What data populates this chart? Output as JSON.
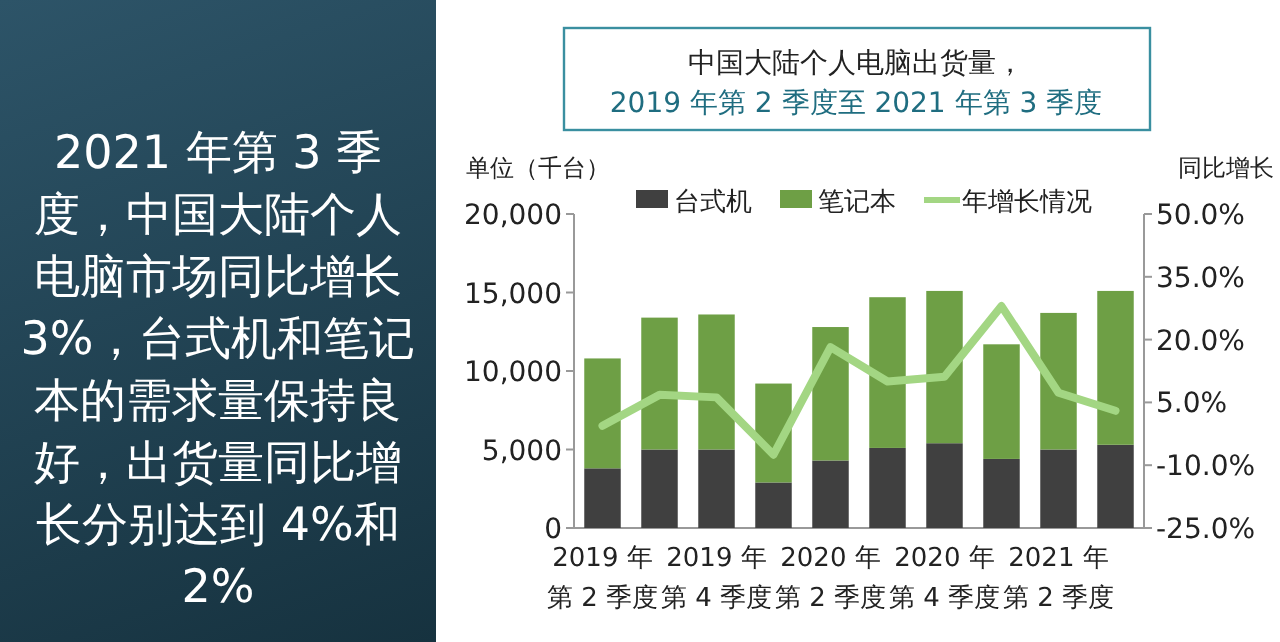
{
  "chart_data": [
    {
      "type": "other",
      "annotations": [
        "2021 年第 3 季度，中国大陆个人电脑市场同比增长 3%，台式机和笔记本的需求量保持良好，出货量同比增长分别达到 4%和2%"
      ]
    },
    {
      "type": "bar",
      "stacked": true,
      "title": "中国大陆个人电脑出货量，",
      "subtitle": "2019 年第 2 季度至 2021 年第 3 季度",
      "ylabel": "单位（千台）",
      "y2label": "同比增长",
      "legend": "top",
      "categories": [
        "2019 年第 2 季度",
        null,
        "2019 年第 4 季度",
        null,
        "2020 年第 2 季度",
        null,
        "2020 年第 4 季度",
        null,
        "2021 年第 2 季度",
        null
      ],
      "series": [
        {
          "name": "台式机",
          "color": "#404040",
          "values": [
            3800,
            5000,
            5000,
            2900,
            4300,
            5100,
            5400,
            4400,
            5000,
            5300
          ]
        },
        {
          "name": "笔记本",
          "color": "#6e9f45",
          "values": [
            7000,
            8400,
            8600,
            6300,
            8500,
            9600,
            9700,
            7300,
            8700,
            9800
          ]
        },
        {
          "name": "年增长情况",
          "type": "line",
          "axis": "y2",
          "color": "#a3d683",
          "values": [
            -0.6,
            6.8,
            6.2,
            -7.5,
            18.2,
            10,
            11.1,
            28,
            7.3,
            3
          ]
        }
      ],
      "ylim": [
        0,
        20000
      ],
      "yticks": [
        0,
        {
          "value": 5000,
          "label": "5,000"
        },
        {
          "value": 10000,
          "label": "10,000"
        },
        {
          "value": 15000,
          "label": "15,000"
        },
        {
          "value": 20000,
          "label": "20,000"
        }
      ],
      "y2lim": [
        -25,
        50
      ],
      "y2ticks": [
        {
          "value": -25,
          "label": "-25.0%"
        },
        {
          "value": -10,
          "label": "-10.0%"
        },
        {
          "value": 5,
          "label": "5.0%"
        },
        {
          "value": 20,
          "label": "20.0%"
        },
        {
          "value": 35,
          "label": "35.0%"
        },
        {
          "value": 50,
          "label": "50.0%"
        }
      ]
    }
  ]
}
